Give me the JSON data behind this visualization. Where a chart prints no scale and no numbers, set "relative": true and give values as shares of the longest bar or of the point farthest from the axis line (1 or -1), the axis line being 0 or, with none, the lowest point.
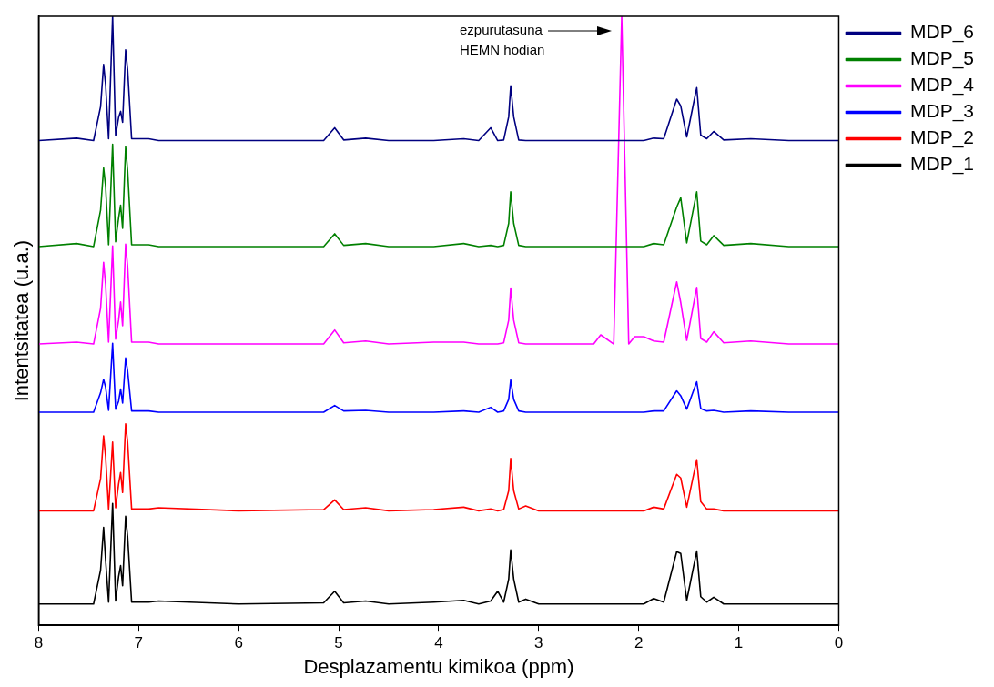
{
  "chart_data": {
    "type": "line",
    "relative": true,
    "xlabel": "Desplazamentu kimikoa (ppm)",
    "ylabel": "Intentsitatea (u.a.)",
    "xlim": [
      8,
      0
    ],
    "xticks": [
      8,
      7,
      6,
      5,
      4,
      3,
      2,
      1,
      0
    ],
    "grid": false,
    "legend": "top right",
    "marker": "none",
    "line_style": "solid",
    "annotations": [
      "ezpurutasuna\nHEMN hodian"
    ],
    "x": [
      8,
      7.62,
      7.45,
      7.38,
      7.35,
      7.33,
      7.3,
      7.26,
      7.23,
      7.2,
      7.18,
      7.16,
      7.13,
      7.11,
      7.07,
      6.9,
      6.8,
      6.0,
      5.15,
      5.04,
      4.95,
      4.73,
      4.5,
      4.05,
      3.75,
      3.6,
      3.48,
      3.41,
      3.35,
      3.3,
      3.28,
      3.25,
      3.2,
      3.13,
      3.0,
      2.45,
      2.38,
      2.25,
      2.17,
      2.1,
      2.04,
      1.95,
      1.85,
      1.75,
      1.62,
      1.58,
      1.52,
      1.42,
      1.38,
      1.32,
      1.25,
      1.15,
      0.88,
      0.5,
      0
    ],
    "series": [
      {
        "name": "MDP_6",
        "color": "#000080",
        "values": [
          0.796,
          0.8,
          0.796,
          0.852,
          0.921,
          0.888,
          0.799,
          1,
          0.804,
          0.834,
          0.844,
          0.826,
          0.945,
          0.913,
          0.799,
          0.799,
          0.796,
          0.796,
          0.796,
          0.817,
          0.797,
          0.8,
          0.796,
          0.796,
          0.799,
          0.796,
          0.817,
          0.796,
          0.797,
          0.835,
          0.886,
          0.835,
          0.797,
          0.796,
          0.796,
          0.796,
          0.796,
          0.796,
          0.796,
          0.796,
          0.796,
          0.796,
          0.8,
          0.799,
          0.864,
          0.853,
          0.802,
          0.883,
          0.805,
          0.799,
          0.811,
          0.797,
          0.799,
          0.796,
          0.796
        ]
      },
      {
        "name": "MDP_5",
        "color": "#008000",
        "values": [
          0.622,
          0.627,
          0.622,
          0.682,
          0.751,
          0.721,
          0.625,
          0.79,
          0.63,
          0.669,
          0.69,
          0.652,
          0.786,
          0.747,
          0.625,
          0.625,
          0.622,
          0.622,
          0.622,
          0.643,
          0.624,
          0.627,
          0.622,
          0.622,
          0.627,
          0.622,
          0.624,
          0.622,
          0.624,
          0.66,
          0.712,
          0.66,
          0.624,
          0.622,
          0.622,
          0.622,
          0.622,
          0.622,
          0.622,
          0.622,
          0.622,
          0.622,
          0.627,
          0.625,
          0.687,
          0.702,
          0.628,
          0.712,
          0.631,
          0.625,
          0.64,
          0.624,
          0.627,
          0.622,
          0.622
        ]
      },
      {
        "name": "MDP_4",
        "color": "#ff00ff",
        "values": [
          0.462,
          0.465,
          0.462,
          0.521,
          0.596,
          0.56,
          0.465,
          0.623,
          0.47,
          0.501,
          0.531,
          0.492,
          0.626,
          0.59,
          0.465,
          0.465,
          0.462,
          0.462,
          0.462,
          0.485,
          0.464,
          0.467,
          0.462,
          0.465,
          0.465,
          0.462,
          0.462,
          0.462,
          0.464,
          0.501,
          0.554,
          0.501,
          0.464,
          0.462,
          0.462,
          0.462,
          0.477,
          0.462,
          1,
          0.462,
          0.474,
          0.474,
          0.467,
          0.465,
          0.564,
          0.53,
          0.468,
          0.555,
          0.471,
          0.465,
          0.482,
          0.464,
          0.467,
          0.462,
          0.462
        ]
      },
      {
        "name": "MDP_3",
        "color": "#0000ff",
        "values": [
          0.35,
          0.35,
          0.35,
          0.382,
          0.404,
          0.391,
          0.353,
          0.463,
          0.355,
          0.368,
          0.388,
          0.365,
          0.439,
          0.418,
          0.352,
          0.352,
          0.35,
          0.35,
          0.35,
          0.361,
          0.352,
          0.353,
          0.35,
          0.35,
          0.352,
          0.35,
          0.358,
          0.35,
          0.352,
          0.371,
          0.403,
          0.371,
          0.352,
          0.35,
          0.35,
          0.35,
          0.35,
          0.35,
          0.35,
          0.35,
          0.35,
          0.35,
          0.352,
          0.352,
          0.385,
          0.377,
          0.355,
          0.4,
          0.356,
          0.352,
          0.353,
          0.35,
          0.352,
          0.35,
          0.35
        ]
      },
      {
        "name": "MDP_2",
        "color": "#ff0000",
        "values": [
          0.188,
          0.188,
          0.188,
          0.241,
          0.311,
          0.277,
          0.191,
          0.301,
          0.193,
          0.232,
          0.251,
          0.218,
          0.331,
          0.301,
          0.191,
          0.191,
          0.193,
          0.188,
          0.19,
          0.206,
          0.19,
          0.193,
          0.188,
          0.19,
          0.194,
          0.188,
          0.191,
          0.188,
          0.19,
          0.221,
          0.274,
          0.221,
          0.191,
          0.196,
          0.188,
          0.188,
          0.188,
          0.188,
          0.188,
          0.188,
          0.188,
          0.188,
          0.194,
          0.191,
          0.248,
          0.242,
          0.194,
          0.272,
          0.203,
          0.191,
          0.191,
          0.188,
          0.188,
          0.188,
          0.188
        ]
      },
      {
        "name": "MDP_1",
        "color": "#000000",
        "values": [
          0.035,
          0.035,
          0.035,
          0.091,
          0.161,
          0.107,
          0.038,
          0.2,
          0.04,
          0.08,
          0.098,
          0.065,
          0.179,
          0.146,
          0.038,
          0.038,
          0.04,
          0.035,
          0.037,
          0.056,
          0.037,
          0.04,
          0.035,
          0.038,
          0.041,
          0.035,
          0.04,
          0.056,
          0.038,
          0.076,
          0.124,
          0.076,
          0.038,
          0.043,
          0.035,
          0.035,
          0.035,
          0.035,
          0.035,
          0.035,
          0.035,
          0.035,
          0.044,
          0.038,
          0.121,
          0.118,
          0.041,
          0.122,
          0.047,
          0.038,
          0.046,
          0.035,
          0.035,
          0.035,
          0.035
        ]
      }
    ]
  }
}
